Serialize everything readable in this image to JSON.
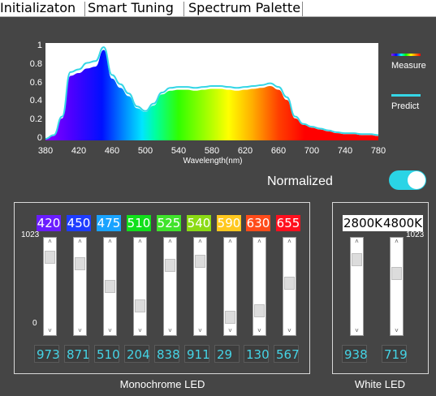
{
  "tabs": [
    "Initializaton",
    "Smart Tuning",
    "Spectrum Palette"
  ],
  "chart_data": {
    "type": "line",
    "title": "",
    "xlabel": "Wavelength(nm)",
    "ylabel": "",
    "xlim": [
      380,
      780
    ],
    "ylim": [
      0,
      1
    ],
    "xticks": [
      "380",
      "420",
      "460",
      "500",
      "540",
      "580",
      "620",
      "660",
      "700",
      "740",
      "780"
    ],
    "yticks": [
      "0",
      "0.2",
      "0.4",
      "0.6",
      "0.8",
      "1"
    ],
    "grid": false,
    "legend_position": "right",
    "series": [
      {
        "name": "Measure",
        "x": [
          380,
          390,
          400,
          410,
          420,
          430,
          440,
          450,
          460,
          470,
          480,
          490,
          500,
          510,
          520,
          530,
          540,
          550,
          560,
          570,
          580,
          590,
          600,
          610,
          620,
          630,
          640,
          650,
          660,
          670,
          680,
          690,
          700,
          710,
          720,
          730,
          740,
          750,
          760,
          770,
          780
        ],
        "y": [
          0.0,
          0.03,
          0.22,
          0.68,
          0.71,
          0.76,
          0.78,
          0.96,
          0.65,
          0.55,
          0.46,
          0.33,
          0.29,
          0.36,
          0.48,
          0.52,
          0.53,
          0.53,
          0.52,
          0.53,
          0.54,
          0.54,
          0.53,
          0.52,
          0.53,
          0.54,
          0.55,
          0.57,
          0.53,
          0.42,
          0.22,
          0.15,
          0.12,
          0.1,
          0.08,
          0.06,
          0.05,
          0.05,
          0.04,
          0.04,
          0.03
        ]
      },
      {
        "name": "Predict",
        "x": [
          380,
          390,
          400,
          410,
          420,
          430,
          440,
          450,
          460,
          470,
          480,
          490,
          500,
          510,
          520,
          530,
          540,
          550,
          560,
          570,
          580,
          590,
          600,
          610,
          620,
          630,
          640,
          650,
          660,
          670,
          680,
          690,
          700,
          710,
          720,
          730,
          740,
          750,
          760,
          770,
          780
        ],
        "y": [
          0.0,
          0.04,
          0.24,
          0.72,
          0.75,
          0.82,
          0.84,
          0.99,
          0.69,
          0.59,
          0.49,
          0.35,
          0.3,
          0.38,
          0.5,
          0.55,
          0.56,
          0.56,
          0.55,
          0.56,
          0.57,
          0.57,
          0.56,
          0.55,
          0.56,
          0.57,
          0.58,
          0.6,
          0.56,
          0.45,
          0.24,
          0.16,
          0.13,
          0.11,
          0.09,
          0.07,
          0.06,
          0.06,
          0.05,
          0.05,
          0.04
        ]
      }
    ]
  },
  "legend": {
    "measure": "Measure",
    "predict": "Predict"
  },
  "normalized": {
    "label": "Normalized",
    "on": true
  },
  "mono": {
    "group_label": "Monochrome LED",
    "scale_top": "1023",
    "scale_bottom": "0",
    "channels": [
      {
        "wavelength": "420",
        "value": "973",
        "color": "#6a1cff"
      },
      {
        "wavelength": "450",
        "value": "871",
        "color": "#1e3cff"
      },
      {
        "wavelength": "475",
        "value": "510",
        "color": "#19a3ff"
      },
      {
        "wavelength": "510",
        "value": "204",
        "color": "#10e01a"
      },
      {
        "wavelength": "525",
        "value": "838",
        "color": "#3fe32b"
      },
      {
        "wavelength": "540",
        "value": "911",
        "color": "#8bdb14"
      },
      {
        "wavelength": "590",
        "value": "29",
        "color": "#ffc81e"
      },
      {
        "wavelength": "630",
        "value": "130",
        "color": "#ff4b1a"
      },
      {
        "wavelength": "655",
        "value": "567",
        "color": "#ff0f1e"
      }
    ]
  },
  "white": {
    "group_label": "White LED",
    "scale_top": "1023",
    "channels": [
      {
        "label": "2800K",
        "value": "938"
      },
      {
        "label": "4800K",
        "value": "719"
      }
    ]
  },
  "max_value": 1023
}
